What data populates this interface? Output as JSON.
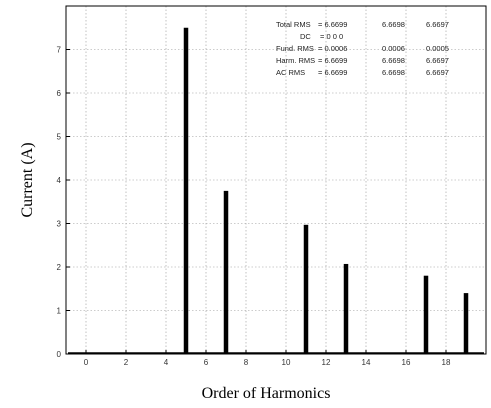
{
  "chart_data": {
    "type": "bar",
    "title": "",
    "xlabel": "Order of Harmonics",
    "ylabel": "Current (A)",
    "xlim": [
      -1,
      20
    ],
    "ylim": [
      0,
      8
    ],
    "x_ticks": [
      "0",
      "2",
      "4",
      "6",
      "8",
      "10",
      "12",
      "14",
      "16",
      "18"
    ],
    "y_ticks": [
      "0",
      "1",
      "2",
      "3",
      "4",
      "5",
      "6",
      "7"
    ],
    "grid": true,
    "bar_color": "#000000",
    "x": [
      5,
      7,
      11,
      13,
      17,
      19
    ],
    "values": [
      7.5,
      3.75,
      2.97,
      2.07,
      1.8,
      1.4
    ],
    "annotations": [
      {
        "label": "Total  RMS",
        "eq": "= 6.6699",
        "v2": "6.6698",
        "v3": "6.6697"
      },
      {
        "label": "DC",
        "eq": "= 0  0  0",
        "v2": "",
        "v3": ""
      },
      {
        "label": "Fund. RMS",
        "eq": "= 0.0006",
        "v2": "0.0006",
        "v3": "0.0005"
      },
      {
        "label": "Harm. RMS",
        "eq": "= 6.6699",
        "v2": "6.6698",
        "v3": "6.6697"
      },
      {
        "label": "AC       RMS",
        "eq": "= 6.6699",
        "v2": "6.6698",
        "v3": "6.6697"
      }
    ]
  }
}
